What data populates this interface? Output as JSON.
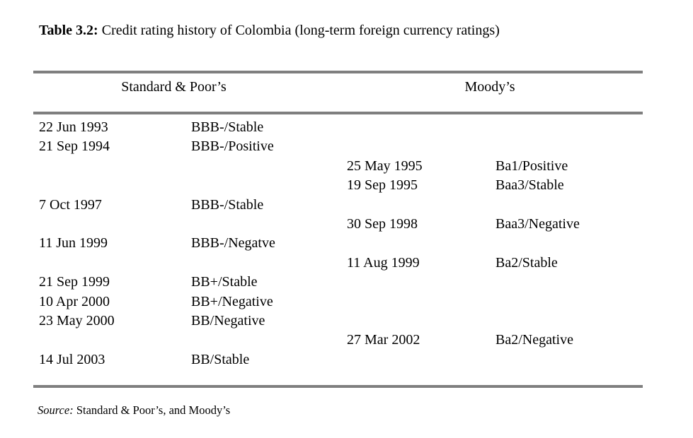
{
  "page": {
    "background": "#ffffff",
    "text_color": "#000000",
    "rule_color": "#7f7f7f"
  },
  "title": {
    "label": "Table 3.2:",
    "text": " Credit rating history of Colombia (long-term foreign currency ratings)"
  },
  "table": {
    "group_headers": [
      {
        "id": "sp",
        "label": "Standard & Poor’s"
      },
      {
        "id": "moodys",
        "label": "Moody’s"
      }
    ],
    "columns": [
      "date",
      "rating",
      "date",
      "rating"
    ],
    "rows": [
      {
        "agency": "sp",
        "date": "22 Jun 1993",
        "rating": "BBB-/Stable"
      },
      {
        "agency": "sp",
        "date": "21 Sep 1994",
        "rating": "BBB-/Positive"
      },
      {
        "agency": "moodys",
        "date": "25 May 1995",
        "rating": "Ba1/Positive"
      },
      {
        "agency": "moodys",
        "date": "19 Sep 1995",
        "rating": "Baa3/Stable"
      },
      {
        "agency": "sp",
        "date": "7 Oct 1997",
        "rating": "BBB-/Stable"
      },
      {
        "agency": "moodys",
        "date": "30 Sep 1998",
        "rating": "Baa3/Negative"
      },
      {
        "agency": "sp",
        "date": "11 Jun 1999",
        "rating": "BBB-/Negatve"
      },
      {
        "agency": "moodys",
        "date": "11 Aug 1999",
        "rating": "Ba2/Stable"
      },
      {
        "agency": "sp",
        "date": "21 Sep 1999",
        "rating": "BB+/Stable"
      },
      {
        "agency": "sp",
        "date": "10 Apr 2000",
        "rating": "BB+/Negative"
      },
      {
        "agency": "sp",
        "date": "23 May 2000",
        "rating": "BB/Negative"
      },
      {
        "agency": "moodys",
        "date": "27 Mar 2002",
        "rating": "Ba2/Negative"
      },
      {
        "agency": "sp",
        "date": "14 Jul 2003",
        "rating": "BB/Stable"
      }
    ]
  },
  "source": {
    "label": "Source:",
    "text": " Standard & Poor’s, and Moody’s"
  }
}
